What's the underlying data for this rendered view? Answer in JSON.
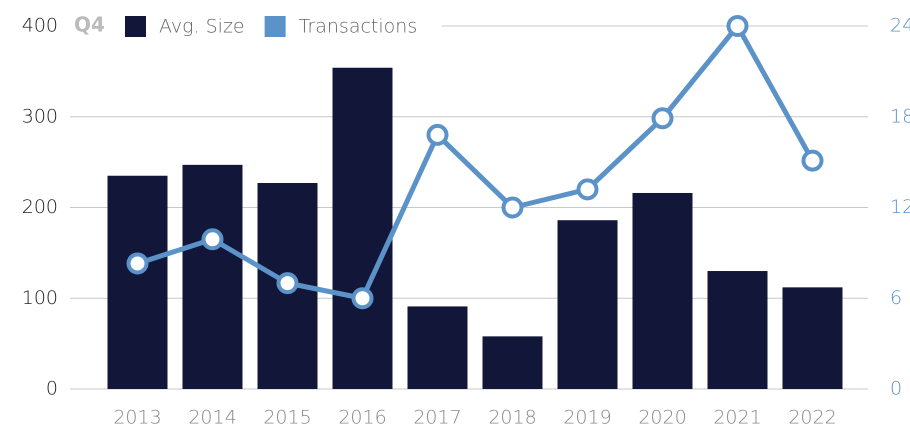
{
  "chart_data": {
    "type": "combo",
    "title": "Q4",
    "categories": [
      "2013",
      "2014",
      "2015",
      "2016",
      "2017",
      "2018",
      "2019",
      "2020",
      "2021",
      "2022"
    ],
    "series": [
      {
        "name": "Avg. Size",
        "type": "bar",
        "color": "#12173a",
        "values": [
          235,
          247,
          227,
          354,
          91,
          58,
          186,
          216,
          130,
          112
        ]
      },
      {
        "name": "Transactions",
        "type": "line",
        "axis": "y2",
        "color": "#5b93c9",
        "values": [
          8.3,
          9.9,
          7.0,
          6.0,
          16.8,
          12.0,
          13.2,
          17.9,
          24.0,
          15.1
        ]
      }
    ],
    "ylim": [
      0,
      400
    ],
    "yticks": [
      0,
      100,
      200,
      300,
      400
    ],
    "y2lim": [
      0,
      24
    ],
    "y2ticks": [
      0,
      6,
      12,
      18,
      24
    ],
    "grid": true
  }
}
